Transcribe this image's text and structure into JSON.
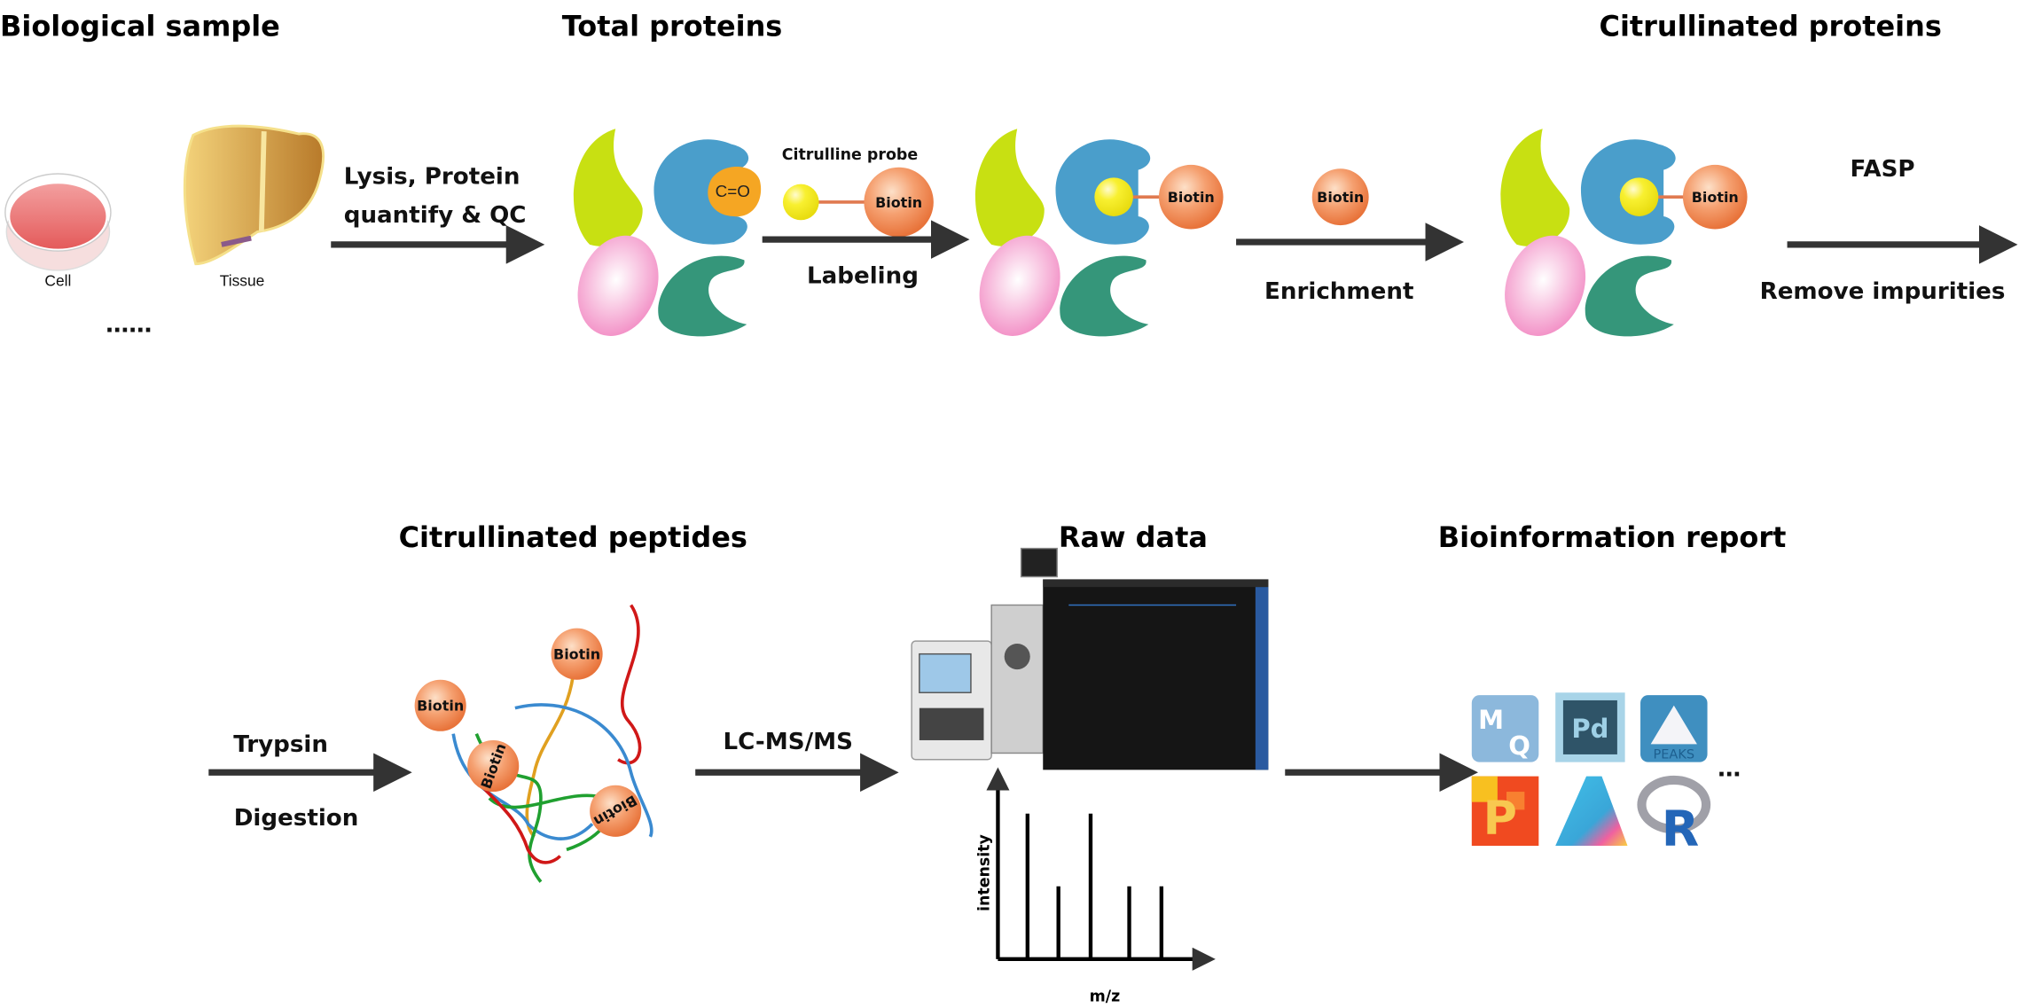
{
  "top_row": {
    "biological_sample": {
      "title": "Biological sample",
      "cell_label": "Cell",
      "tissue_label": "Tissue",
      "more": "……"
    },
    "step1": {
      "line1": "Lysis, Protein",
      "line2": "quantify & QC"
    },
    "total_proteins": {
      "title": "Total proteins",
      "group_label": "C=O"
    },
    "labeling": {
      "probe_label": "Citrulline probe",
      "biotin": "Biotin",
      "step": "Labeling"
    },
    "labeled_biotin": "Biotin",
    "enrichment": {
      "biotin": "Biotin",
      "step": "Enrichment"
    },
    "citrullinated_proteins": {
      "title": "Citrullinated proteins",
      "biotin": "Biotin"
    },
    "fasp": {
      "line1": "FASP",
      "line2": "Remove impurities"
    }
  },
  "bottom_row": {
    "digestion": {
      "line1": "Trypsin",
      "line2": "Digestion"
    },
    "peptides": {
      "title": "Citrullinated peptides",
      "biotin_labels": [
        "Biotin",
        "Biotin",
        "Biotin",
        "Biotin"
      ]
    },
    "lcms": {
      "label": "LC-MS/MS"
    },
    "raw_data": {
      "title": "Raw data",
      "spectrum": {
        "xlabel": "m/z",
        "ylabel": "intensity",
        "relative_peaks": [
          1.0,
          0.5,
          1.0,
          0.5,
          0.5
        ]
      }
    },
    "report": {
      "title": "Bioinformation report",
      "software_icons": [
        {
          "name": "maxquant-icon",
          "text": "MQ"
        },
        {
          "name": "proteome-discoverer-icon",
          "text": "Pd"
        },
        {
          "name": "peaks-icon",
          "text": "PEAKS"
        },
        {
          "name": "p-software-icon",
          "text": "P"
        },
        {
          "name": "skyline-icon",
          "text": ""
        },
        {
          "name": "r-icon",
          "text": "R"
        }
      ],
      "more": "…"
    }
  },
  "colors": {
    "arrow": "#333333",
    "biotin": "#f08a50",
    "probe": "#f5ee2a",
    "green_protein": "#c8e012",
    "blue_protein": "#4a9ecb",
    "pink_protein": "#f29ac8",
    "teal_protein": "#35967a",
    "carbonyl": "#f5a623"
  }
}
